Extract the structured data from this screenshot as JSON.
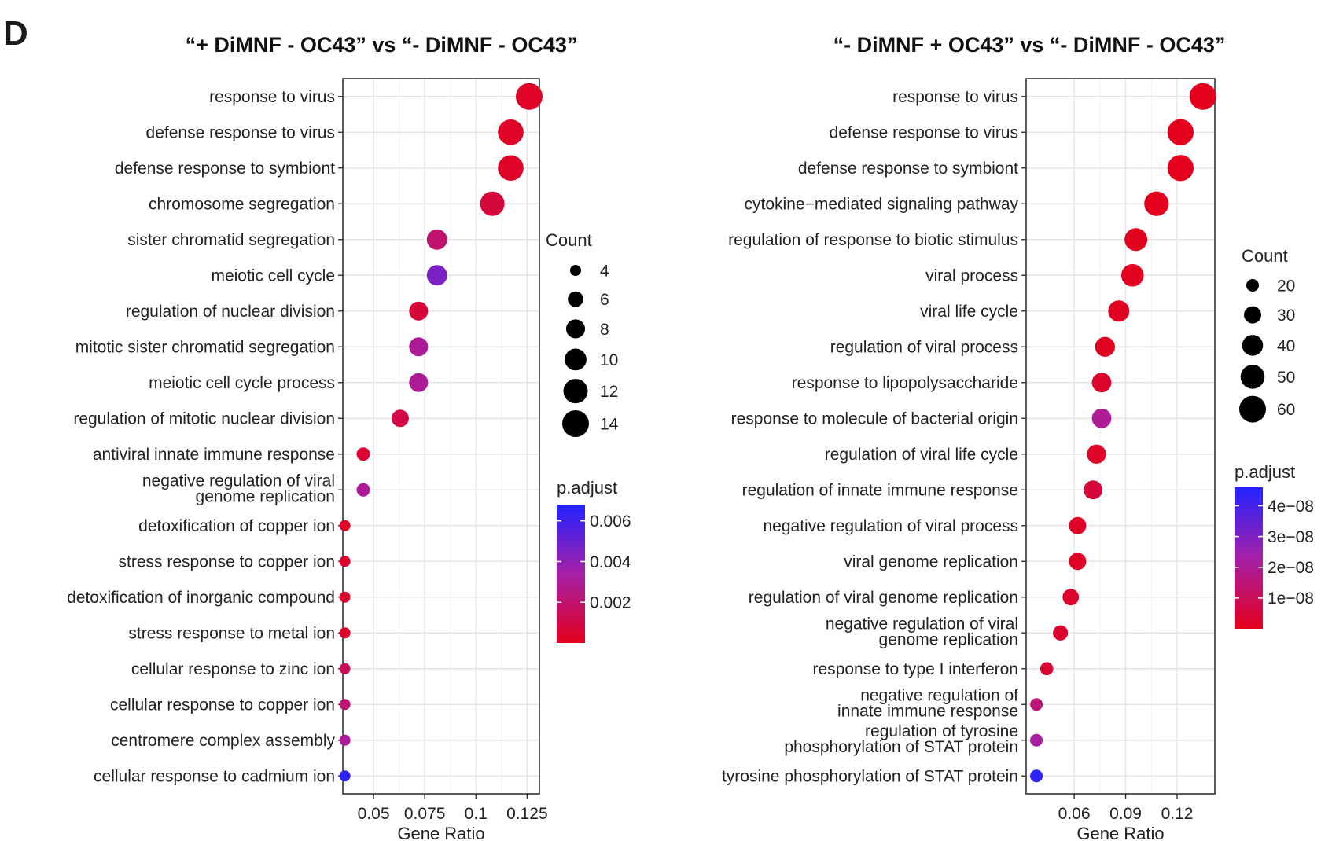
{
  "figure": {
    "panel_letter": "D"
  },
  "colors": {
    "low": "#e3001b",
    "mid": "#a620a8",
    "high": "#2222ff",
    "grid": "#e5e5e5"
  },
  "legend_titles": {
    "size": "Count",
    "color": "p.adjust"
  },
  "chart_data": [
    {
      "type": "scatter",
      "title": "“+ DiMNF - OC43” vs “- DiMNF - OC43”",
      "xlabel": "Gene Ratio",
      "ylabel": "",
      "xlim": [
        0.035,
        0.131
      ],
      "xticks": [
        0.05,
        0.075,
        0.1,
        0.125
      ],
      "xtick_labels": [
        "0.05",
        "0.075",
        "0.1",
        "0.125"
      ],
      "grid": true,
      "legend_position": "right",
      "size_legend": {
        "values": [
          4,
          6,
          8,
          10,
          12,
          14
        ],
        "labels": [
          "4",
          "6",
          "8",
          "10",
          "12",
          "14"
        ]
      },
      "color_legend": {
        "min": 0.0,
        "max": 0.0068,
        "ticks": [
          0.006,
          0.004,
          0.002
        ],
        "tick_labels": [
          "0.006",
          "0.004",
          "0.002"
        ]
      },
      "terms": [
        [
          "response to virus"
        ],
        [
          "defense response to virus"
        ],
        [
          "defense response to symbiont"
        ],
        [
          "chromosome segregation"
        ],
        [
          "sister chromatid segregation"
        ],
        [
          "meiotic cell cycle"
        ],
        [
          "regulation of nuclear division"
        ],
        [
          "mitotic sister chromatid segregation"
        ],
        [
          "meiotic cell cycle process"
        ],
        [
          "regulation of mitotic nuclear division"
        ],
        [
          "antiviral innate immune response"
        ],
        [
          "negative regulation of viral",
          "genome replication"
        ],
        [
          "detoxification of copper ion"
        ],
        [
          "stress response to copper ion"
        ],
        [
          "detoxification of inorganic compound"
        ],
        [
          "stress response to metal ion"
        ],
        [
          "cellular response to zinc ion"
        ],
        [
          "cellular response to copper ion"
        ],
        [
          "centromere complex assembly"
        ],
        [
          "cellular response to cadmium ion"
        ]
      ],
      "gene_ratio": [
        0.126,
        0.117,
        0.117,
        0.108,
        0.081,
        0.081,
        0.072,
        0.072,
        0.072,
        0.063,
        0.045,
        0.045,
        0.036,
        0.036,
        0.036,
        0.036,
        0.036,
        0.036,
        0.036,
        0.036
      ],
      "count": [
        14,
        13,
        13,
        12,
        9,
        9,
        8,
        8,
        8,
        7,
        5,
        5,
        4,
        4,
        4,
        4,
        4,
        4,
        4,
        4
      ],
      "p_adjust": [
        0.0003,
        0.0003,
        0.0003,
        0.0008,
        0.002,
        0.0045,
        0.0007,
        0.003,
        0.003,
        0.001,
        0.0005,
        0.003,
        0.0003,
        0.0004,
        0.0004,
        0.0004,
        0.0015,
        0.0022,
        0.003,
        0.0065
      ]
    },
    {
      "type": "scatter",
      "title": "“- DiMNF + OC43” vs “- DiMNF - OC43”",
      "xlabel": "Gene Ratio",
      "ylabel": "",
      "xlim": [
        0.032,
        0.142
      ],
      "xticks": [
        0.06,
        0.09,
        0.12
      ],
      "xtick_labels": [
        "0.06",
        "0.09",
        "0.12"
      ],
      "grid": true,
      "legend_position": "right",
      "size_legend": {
        "values": [
          20,
          30,
          40,
          50,
          60
        ],
        "labels": [
          "20",
          "30",
          "40",
          "50",
          "60"
        ]
      },
      "color_legend": {
        "min": 0.0,
        "max": 4.6e-08,
        "ticks": [
          4e-08,
          3e-08,
          2e-08,
          1e-08
        ],
        "tick_labels": [
          "4e−08",
          "3e−08",
          "2e−08",
          "1e−08"
        ]
      },
      "terms": [
        [
          "response to virus"
        ],
        [
          "defense response to virus"
        ],
        [
          "defense response to symbiont"
        ],
        [
          "cytokine−mediated signaling pathway"
        ],
        [
          "regulation of response to biotic stimulus"
        ],
        [
          "viral process"
        ],
        [
          "viral life cycle"
        ],
        [
          "regulation of viral process"
        ],
        [
          "response to lipopolysaccharide"
        ],
        [
          "response to molecule of bacterial origin"
        ],
        [
          "regulation of viral life cycle"
        ],
        [
          "regulation of innate immune response"
        ],
        [
          "negative regulation of viral process"
        ],
        [
          "viral genome replication"
        ],
        [
          "regulation of viral genome replication"
        ],
        [
          "negative regulation of viral",
          "genome replication"
        ],
        [
          "response to type I interferon"
        ],
        [
          "negative regulation of",
          "innate immune response"
        ],
        [
          "regulation of tyrosine",
          "phosphorylation of STAT protein"
        ],
        [
          "tyrosine phosphorylation of  STAT protein"
        ]
      ],
      "gene_ratio": [
        0.135,
        0.122,
        0.122,
        0.108,
        0.096,
        0.094,
        0.086,
        0.078,
        0.076,
        0.076,
        0.073,
        0.071,
        0.062,
        0.062,
        0.058,
        0.052,
        0.044,
        0.038,
        0.038,
        0.038
      ],
      "count": [
        64,
        58,
        58,
        52,
        46,
        45,
        41,
        37,
        36,
        36,
        35,
        34,
        30,
        30,
        28,
        25,
        21,
        18,
        18,
        18
      ],
      "p_adjust": [
        1e-10,
        2e-10,
        2e-10,
        3e-10,
        4e-10,
        5e-10,
        8e-10,
        1e-09,
        3e-09,
        2e-08,
        2e-09,
        5e-09,
        2e-09,
        2e-09,
        3e-09,
        3e-09,
        4e-09,
        1.5e-08,
        2.2e-08,
        4.4e-08
      ]
    }
  ]
}
